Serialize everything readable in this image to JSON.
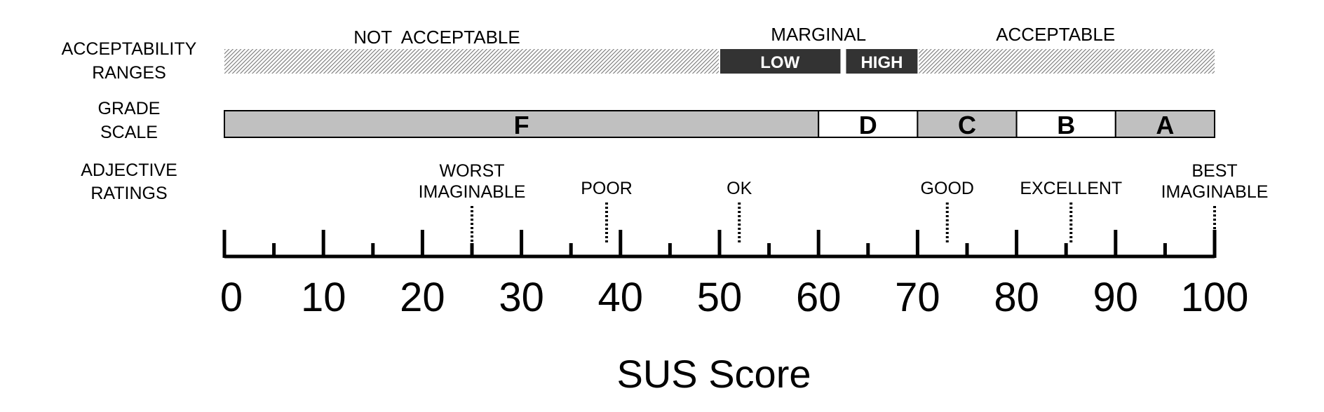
{
  "row_labels": {
    "acceptability": [
      "ACCEPTABILITY",
      "RANGES"
    ],
    "grade": [
      "GRADE",
      "SCALE"
    ],
    "adjective": [
      "ADJECTIVE",
      "RATINGS"
    ]
  },
  "acceptability": {
    "not_acceptable": {
      "label": "NOT  ACCEPTABLE",
      "range": [
        0,
        50
      ]
    },
    "marginal": {
      "label": "MARGINAL",
      "range": [
        50,
        70
      ],
      "low": {
        "label": "LOW",
        "range": [
          50,
          62.5
        ]
      },
      "high": {
        "label": "HIGH",
        "range": [
          62.5,
          70
        ]
      }
    },
    "acceptable": {
      "label": "ACCEPTABLE",
      "range": [
        70,
        100
      ]
    }
  },
  "grades": [
    {
      "label": "F",
      "from": 0,
      "to": 60,
      "fill": "#c0c0c0"
    },
    {
      "label": "D",
      "from": 60,
      "to": 70,
      "fill": "#ffffff"
    },
    {
      "label": "C",
      "from": 70,
      "to": 80,
      "fill": "#c0c0c0"
    },
    {
      "label": "B",
      "from": 80,
      "to": 90,
      "fill": "#ffffff"
    },
    {
      "label": "A",
      "from": 90,
      "to": 100,
      "fill": "#c0c0c0"
    }
  ],
  "adjectives": [
    {
      "lines": [
        "WORST",
        "IMAGINABLE"
      ],
      "value": 25
    },
    {
      "lines": [
        "POOR"
      ],
      "value": 38.6
    },
    {
      "lines": [
        "OK"
      ],
      "value": 52
    },
    {
      "lines": [
        "GOOD"
      ],
      "value": 73
    },
    {
      "lines": [
        "EXCELLENT"
      ],
      "value": 85.5
    },
    {
      "lines": [
        "BEST",
        "IMAGINABLE"
      ],
      "value": 100
    }
  ],
  "axis": {
    "min": 0,
    "max": 100,
    "major_ticks": [
      0,
      10,
      20,
      30,
      40,
      50,
      60,
      70,
      80,
      90,
      100
    ],
    "minor_ticks": [
      5,
      15,
      25,
      35,
      45,
      55,
      65,
      75,
      85,
      95
    ],
    "label": "SUS Score"
  },
  "colors": {
    "hatch": "#888888",
    "marginal": "#333333",
    "grade_dark": "#c0c0c0",
    "grade_light": "#ffffff"
  }
}
